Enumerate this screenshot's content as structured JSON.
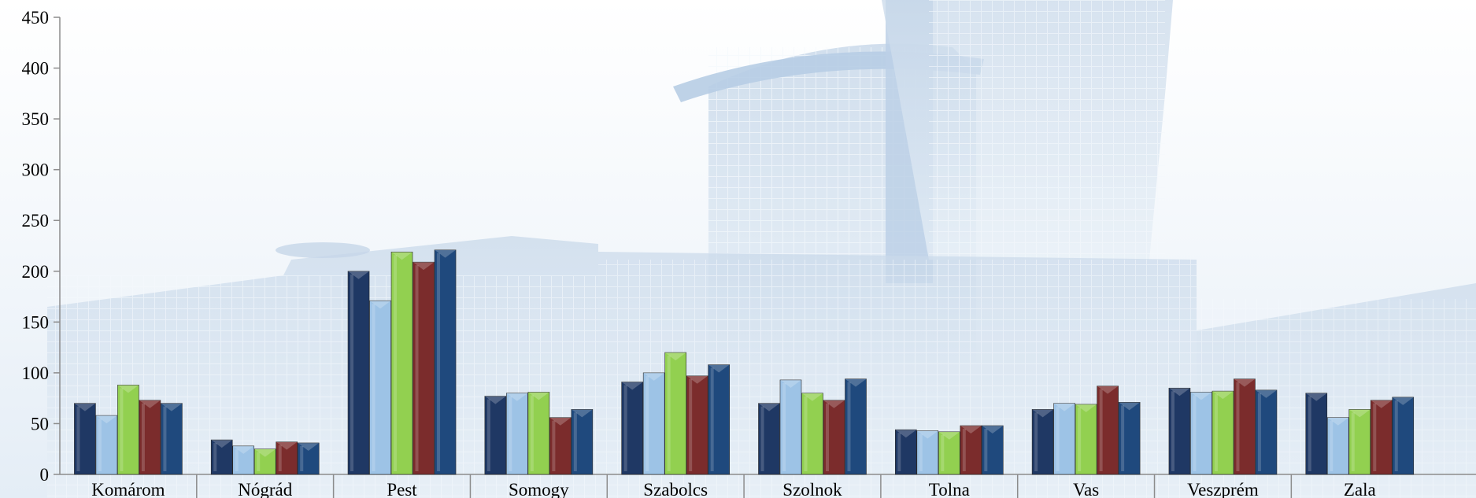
{
  "chart_data": {
    "type": "bar",
    "title": "",
    "xlabel": "",
    "ylabel": "",
    "ylim": [
      0,
      450
    ],
    "yticks": [
      0,
      50,
      100,
      150,
      200,
      250,
      300,
      350,
      400,
      450
    ],
    "grid": false,
    "legend": "none",
    "categories": [
      "Komárom",
      "Nógrád",
      "Pest",
      "Somogy",
      "Szabolcs",
      "Szolnok",
      "Tolna",
      "Vas",
      "Veszprém",
      "Zala"
    ],
    "series": [
      {
        "color": "#1f3864",
        "values": [
          70,
          34,
          200,
          77,
          91,
          70,
          44,
          64,
          85,
          80
        ]
      },
      {
        "color": "#9dc3e6",
        "values": [
          58,
          28,
          171,
          80,
          100,
          93,
          43,
          70,
          81,
          56
        ]
      },
      {
        "color": "#92d050",
        "values": [
          88,
          25,
          219,
          81,
          120,
          80,
          42,
          69,
          82,
          64
        ]
      },
      {
        "color": "#7b2c2c",
        "values": [
          73,
          32,
          209,
          56,
          97,
          73,
          48,
          87,
          94,
          73
        ]
      },
      {
        "color": "#1f497d",
        "values": [
          70,
          31,
          221,
          64,
          108,
          94,
          48,
          71,
          83,
          76
        ]
      }
    ]
  }
}
